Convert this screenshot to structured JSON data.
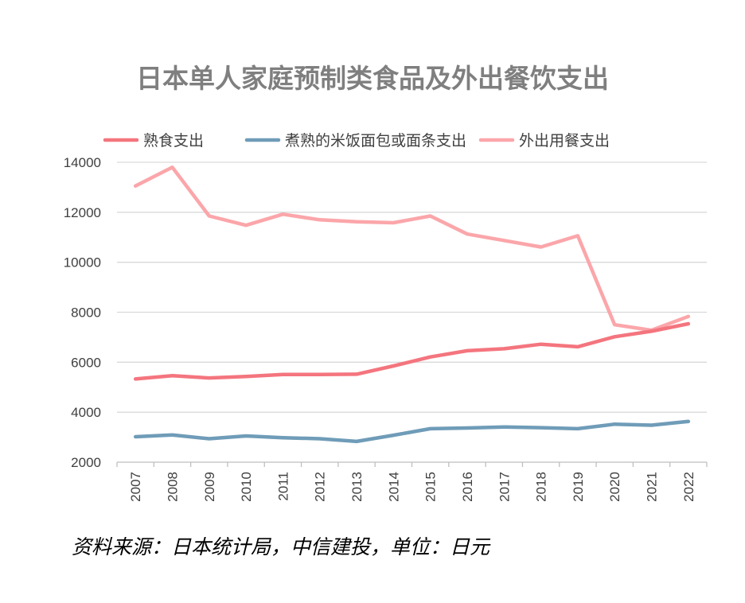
{
  "chart_data": {
    "type": "line",
    "title": "日本单人家庭预制类食品及外出餐饮支出",
    "xlabel": "",
    "ylabel": "",
    "x": [
      "2007",
      "2008",
      "2009",
      "2010",
      "2011",
      "2012",
      "2013",
      "2014",
      "2015",
      "2016",
      "2017",
      "2018",
      "2019",
      "2020",
      "2021",
      "2022"
    ],
    "ylim": [
      2000,
      14000
    ],
    "yticks": [
      2000,
      4000,
      6000,
      8000,
      10000,
      12000,
      14000
    ],
    "grid": true,
    "legend_position": "top",
    "series": [
      {
        "name": "熟食支出",
        "color": "#f4757e",
        "values": [
          5330,
          5460,
          5370,
          5430,
          5510,
          5510,
          5520,
          5850,
          6210,
          6460,
          6540,
          6720,
          6620,
          7020,
          7240,
          7540
        ]
      },
      {
        "name": "煮熟的米饭面包或面条支出",
        "color": "#6f9cb8",
        "values": [
          3020,
          3090,
          2940,
          3050,
          2980,
          2940,
          2830,
          3080,
          3340,
          3370,
          3410,
          3380,
          3340,
          3520,
          3480,
          3630
        ]
      },
      {
        "name": "外出用餐支出",
        "color": "#fba6aa",
        "values": [
          13050,
          13800,
          11850,
          11480,
          11920,
          11700,
          11620,
          11580,
          11850,
          11130,
          10870,
          10610,
          11060,
          7500,
          7280,
          7830
        ]
      }
    ]
  },
  "source": "资料来源：日本统计局，中信建投，单位：日元"
}
